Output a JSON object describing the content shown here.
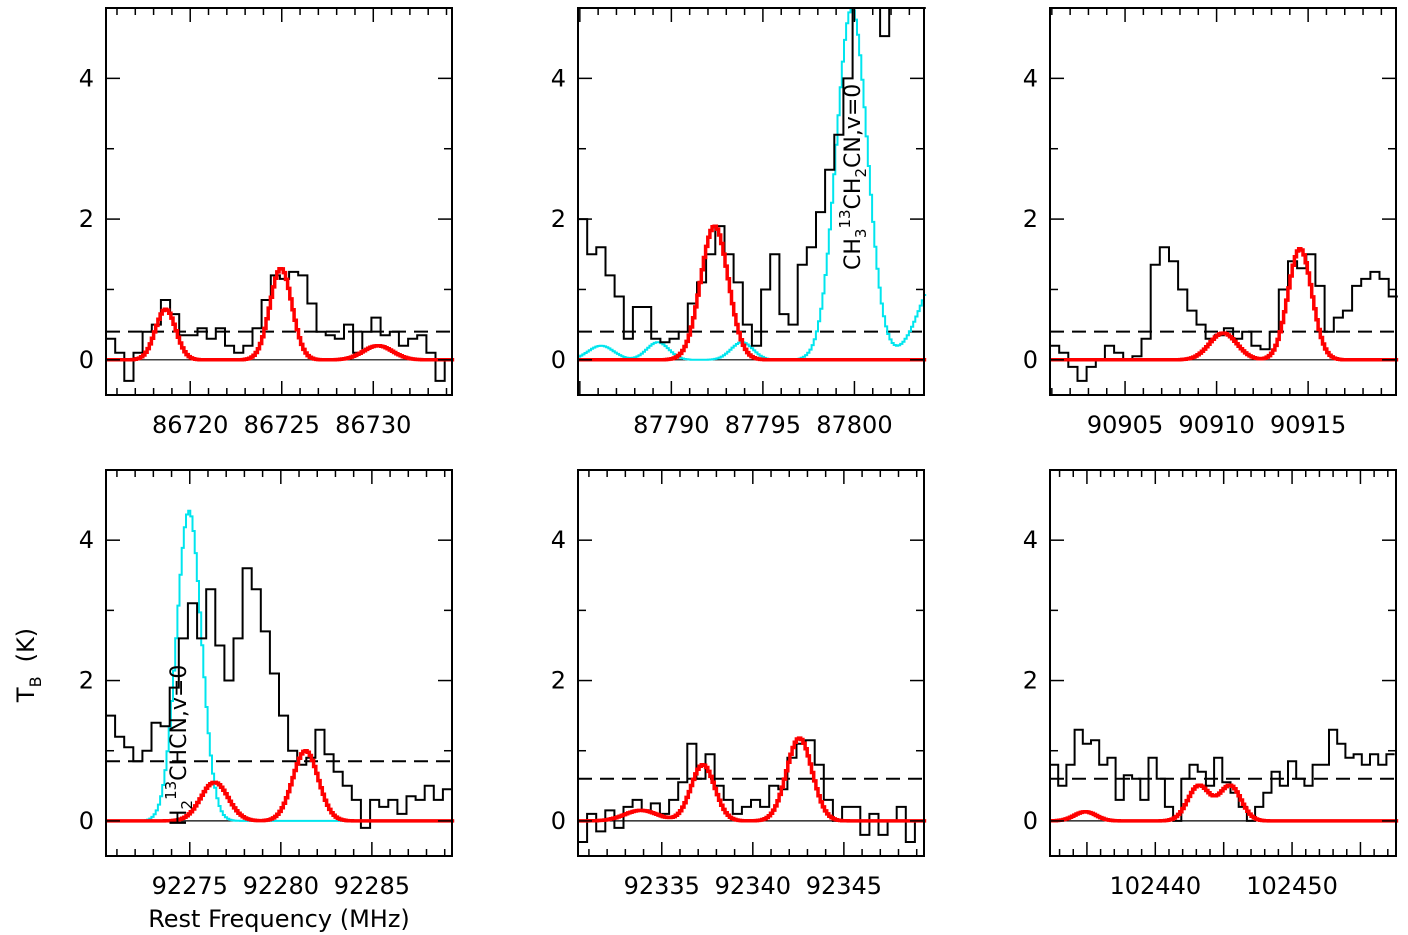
{
  "figure": {
    "ylabel_main": "T",
    "ylabel_sub": "B",
    "ylabel_unit": "(K)",
    "xlabel": "Rest Frequency (MHz)"
  },
  "chart_data": [
    {
      "type": "line",
      "xlim": [
        86715.4,
        86734.3
      ],
      "ylim": [
        -0.5,
        5
      ],
      "xticks": [
        86720,
        86725,
        86730
      ],
      "yticks": [
        0,
        2,
        4
      ],
      "threshold": 0.4,
      "observed": [
        [
          86715.4,
          0.3
        ],
        [
          86715.9,
          0.1
        ],
        [
          86716.4,
          -0.3
        ],
        [
          86716.9,
          0.1
        ],
        [
          86717.4,
          0.4
        ],
        [
          86717.9,
          0.5
        ],
        [
          86718.4,
          0.85
        ],
        [
          86718.9,
          0.65
        ],
        [
          86719.4,
          0.35
        ],
        [
          86719.9,
          0.35
        ],
        [
          86720.4,
          0.45
        ],
        [
          86720.9,
          0.3
        ],
        [
          86721.4,
          0.45
        ],
        [
          86721.9,
          0.2
        ],
        [
          86722.4,
          0.1
        ],
        [
          86722.9,
          0.2
        ],
        [
          86723.4,
          0.45
        ],
        [
          86723.9,
          0.85
        ],
        [
          86724.4,
          1.2
        ],
        [
          86724.9,
          1.15
        ],
        [
          86725.4,
          1.25
        ],
        [
          86725.9,
          1.2
        ],
        [
          86726.4,
          0.8
        ],
        [
          86726.9,
          0.4
        ],
        [
          86727.4,
          0.35
        ],
        [
          86727.9,
          0.3
        ],
        [
          86728.4,
          0.5
        ],
        [
          86728.9,
          0.1
        ],
        [
          86729.4,
          0.4
        ],
        [
          86729.9,
          0.6
        ],
        [
          86730.4,
          0.35
        ],
        [
          86730.9,
          0.4
        ],
        [
          86731.4,
          0.2
        ],
        [
          86731.9,
          0.3
        ],
        [
          86732.4,
          0.35
        ],
        [
          86732.9,
          0.1
        ],
        [
          86733.4,
          -0.3
        ],
        [
          86733.9,
          0.0
        ]
      ],
      "model_lines": [
        {
          "x": 86718.6,
          "h": 0.72,
          "w": 0.55
        },
        {
          "x": 86724.9,
          "h": 1.3,
          "w": 0.6
        },
        {
          "x": 86730.2,
          "h": 0.2,
          "w": 0.8
        }
      ],
      "cyan_lines": [],
      "label": null
    },
    {
      "type": "line",
      "xlim": [
        87784.9,
        87803.8
      ],
      "ylim": [
        -0.5,
        5
      ],
      "xticks": [
        87790,
        87795,
        87800
      ],
      "yticks": [
        0,
        2,
        4
      ],
      "threshold": 0.4,
      "observed": [
        [
          87784.9,
          2.0
        ],
        [
          87785.4,
          1.5
        ],
        [
          87785.9,
          1.6
        ],
        [
          87786.4,
          1.2
        ],
        [
          87786.9,
          0.9
        ],
        [
          87787.4,
          0.3
        ],
        [
          87787.9,
          0.75
        ],
        [
          87788.4,
          0.75
        ],
        [
          87788.9,
          0.3
        ],
        [
          87789.4,
          0.25
        ],
        [
          87789.9,
          0.3
        ],
        [
          87790.4,
          0.4
        ],
        [
          87790.9,
          0.8
        ],
        [
          87791.4,
          1.1
        ],
        [
          87791.9,
          1.5
        ],
        [
          87792.4,
          1.9
        ],
        [
          87792.9,
          1.5
        ],
        [
          87793.4,
          1.1
        ],
        [
          87793.9,
          0.5
        ],
        [
          87794.4,
          0.2
        ],
        [
          87794.9,
          1.0
        ],
        [
          87795.4,
          1.5
        ],
        [
          87795.9,
          0.65
        ],
        [
          87796.4,
          0.5
        ],
        [
          87796.9,
          1.35
        ],
        [
          87797.4,
          1.6
        ],
        [
          87797.9,
          2.1
        ],
        [
          87798.4,
          2.7
        ],
        [
          87798.9,
          3.2
        ],
        [
          87799.4,
          4.0
        ],
        [
          87799.9,
          5.0
        ],
        [
          87800.4,
          5.0
        ],
        [
          87800.9,
          5.0
        ],
        [
          87801.4,
          4.6
        ],
        [
          87801.9,
          5.0
        ],
        [
          87802.4,
          5.0
        ],
        [
          87802.9,
          5.0
        ],
        [
          87803.4,
          5.0
        ]
      ],
      "model_lines": [
        {
          "x": 87792.3,
          "h": 1.9,
          "w": 0.75
        }
      ],
      "cyan_lines": [
        {
          "x": 87786.1,
          "h": 0.2,
          "w": 0.7
        },
        {
          "x": 87789.2,
          "h": 0.25,
          "w": 0.6
        },
        {
          "x": 87793.8,
          "h": 0.25,
          "w": 0.6
        },
        {
          "x": 87799.8,
          "h": 5.0,
          "w": 0.85
        },
        {
          "x": 87804.6,
          "h": 1.2,
          "w": 1.1
        }
      ],
      "label": {
        "main": "CH",
        "sub1": "3",
        "sup": "13",
        "rest1": "CH",
        "sub2": "2",
        "rest2": "CN,v=0"
      }
    },
    {
      "type": "line",
      "xlim": [
        90900.9,
        90919.8
      ],
      "ylim": [
        -0.5,
        5
      ],
      "xticks": [
        90905,
        90910,
        90915
      ],
      "yticks": [
        0,
        2,
        4
      ],
      "threshold": 0.4,
      "observed": [
        [
          90900.9,
          0.2
        ],
        [
          90901.4,
          0.1
        ],
        [
          90901.9,
          -0.1
        ],
        [
          90902.4,
          -0.3
        ],
        [
          90902.9,
          -0.1
        ],
        [
          90903.4,
          0.0
        ],
        [
          90903.9,
          0.2
        ],
        [
          90904.4,
          0.1
        ],
        [
          90904.9,
          0.0
        ],
        [
          90905.4,
          0.05
        ],
        [
          90905.9,
          0.3
        ],
        [
          90906.4,
          1.35
        ],
        [
          90906.9,
          1.6
        ],
        [
          90907.4,
          1.4
        ],
        [
          90907.9,
          1.0
        ],
        [
          90908.4,
          0.7
        ],
        [
          90908.9,
          0.5
        ],
        [
          90909.4,
          0.3
        ],
        [
          90909.9,
          0.35
        ],
        [
          90910.4,
          0.45
        ],
        [
          90910.9,
          0.3
        ],
        [
          90911.4,
          0.4
        ],
        [
          90911.9,
          0.2
        ],
        [
          90912.4,
          0.15
        ],
        [
          90912.9,
          0.4
        ],
        [
          90913.4,
          1.0
        ],
        [
          90913.9,
          1.4
        ],
        [
          90914.4,
          1.3
        ],
        [
          90914.9,
          1.5
        ],
        [
          90915.4,
          1.05
        ],
        [
          90915.9,
          0.4
        ],
        [
          90916.4,
          0.6
        ],
        [
          90916.9,
          0.7
        ],
        [
          90917.4,
          1.05
        ],
        [
          90917.9,
          1.15
        ],
        [
          90918.4,
          1.25
        ],
        [
          90918.9,
          1.15
        ],
        [
          90919.4,
          0.9
        ]
      ],
      "model_lines": [
        {
          "x": 90910.3,
          "h": 0.38,
          "w": 0.75
        },
        {
          "x": 90914.5,
          "h": 1.58,
          "w": 0.65
        }
      ],
      "cyan_lines": [],
      "label": null
    },
    {
      "type": "line",
      "xlim": [
        92270.4,
        92289.4
      ],
      "ylim": [
        -0.5,
        5
      ],
      "xticks": [
        92275,
        92280,
        92285
      ],
      "yticks": [
        0,
        2,
        4
      ],
      "threshold": 0.85,
      "observed": [
        [
          92270.4,
          1.5
        ],
        [
          92270.9,
          1.2
        ],
        [
          92271.4,
          1.05
        ],
        [
          92271.9,
          0.85
        ],
        [
          92272.4,
          1.0
        ],
        [
          92272.9,
          1.4
        ],
        [
          92273.4,
          1.35
        ],
        [
          92273.9,
          1.9
        ],
        [
          92274.4,
          2.6
        ],
        [
          92274.9,
          3.1
        ],
        [
          92275.4,
          2.6
        ],
        [
          92275.9,
          3.3
        ],
        [
          92276.4,
          2.5
        ],
        [
          92276.9,
          2.0
        ],
        [
          92277.4,
          2.6
        ],
        [
          92277.9,
          3.6
        ],
        [
          92278.4,
          3.3
        ],
        [
          92278.9,
          2.7
        ],
        [
          92279.4,
          2.1
        ],
        [
          92279.9,
          1.5
        ],
        [
          92280.4,
          1.0
        ],
        [
          92280.9,
          0.8
        ],
        [
          92281.4,
          0.9
        ],
        [
          92281.9,
          1.3
        ],
        [
          92282.4,
          0.95
        ],
        [
          92282.9,
          0.7
        ],
        [
          92283.4,
          0.5
        ],
        [
          92283.9,
          0.3
        ],
        [
          92284.4,
          -0.1
        ],
        [
          92284.9,
          0.3
        ],
        [
          92285.4,
          0.2
        ],
        [
          92285.9,
          0.3
        ],
        [
          92286.4,
          0.1
        ],
        [
          92286.9,
          0.35
        ],
        [
          92287.4,
          0.3
        ],
        [
          92287.9,
          0.5
        ],
        [
          92288.4,
          0.3
        ],
        [
          92288.9,
          0.45
        ]
      ],
      "model_lines": [
        {
          "x": 92276.3,
          "h": 0.55,
          "w": 0.75
        },
        {
          "x": 92281.3,
          "h": 1.0,
          "w": 0.7
        }
      ],
      "cyan_lines": [
        {
          "x": 92274.9,
          "h": 4.42,
          "w": 0.68
        }
      ],
      "label": {
        "main": "H",
        "sub1": "2",
        "sup": "13",
        "rest1": "CHCN,v=0",
        "sub2": "",
        "rest2": ""
      }
    },
    {
      "type": "line",
      "xlim": [
        92330.4,
        92349.4
      ],
      "ylim": [
        -0.5,
        5
      ],
      "xticks": [
        92335,
        92340,
        92345
      ],
      "yticks": [
        0,
        2,
        4
      ],
      "threshold": 0.6,
      "observed": [
        [
          92330.4,
          -0.3
        ],
        [
          92330.9,
          0.1
        ],
        [
          92331.4,
          -0.15
        ],
        [
          92331.9,
          0.15
        ],
        [
          92332.4,
          -0.1
        ],
        [
          92332.9,
          0.2
        ],
        [
          92333.4,
          0.3
        ],
        [
          92333.9,
          0.15
        ],
        [
          92334.4,
          0.25
        ],
        [
          92334.9,
          0.1
        ],
        [
          92335.4,
          0.3
        ],
        [
          92335.9,
          0.55
        ],
        [
          92336.4,
          1.1
        ],
        [
          92336.9,
          0.6
        ],
        [
          92337.4,
          0.95
        ],
        [
          92337.9,
          0.5
        ],
        [
          92338.4,
          0.3
        ],
        [
          92338.9,
          0.1
        ],
        [
          92339.4,
          0.2
        ],
        [
          92339.9,
          0.3
        ],
        [
          92340.4,
          0.2
        ],
        [
          92340.9,
          0.5
        ],
        [
          92341.4,
          0.45
        ],
        [
          92341.9,
          0.9
        ],
        [
          92342.4,
          1.1
        ],
        [
          92342.9,
          1.15
        ],
        [
          92343.4,
          0.8
        ],
        [
          92343.9,
          0.3
        ],
        [
          92344.4,
          0.0
        ],
        [
          92344.9,
          0.2
        ],
        [
          92345.4,
          0.2
        ],
        [
          92345.9,
          -0.2
        ],
        [
          92346.4,
          0.1
        ],
        [
          92346.9,
          -0.2
        ],
        [
          92347.4,
          0.0
        ],
        [
          92347.9,
          0.2
        ],
        [
          92348.4,
          -0.3
        ],
        [
          92348.9,
          0.0
        ]
      ],
      "model_lines": [
        {
          "x": 92333.8,
          "h": 0.15,
          "w": 0.9
        },
        {
          "x": 92337.2,
          "h": 0.8,
          "w": 0.65
        },
        {
          "x": 92342.5,
          "h": 1.18,
          "w": 0.7
        }
      ],
      "cyan_lines": [],
      "label": null
    },
    {
      "type": "line",
      "xlim": [
        102432.3,
        102457.6
      ],
      "ylim": [
        -0.5,
        5
      ],
      "xticks": [
        102440,
        102450
      ],
      "yticks": [
        0,
        2,
        4
      ],
      "threshold": 0.6,
      "observed": [
        [
          102432.3,
          0.8
        ],
        [
          102432.9,
          0.5
        ],
        [
          102433.5,
          0.8
        ],
        [
          102434.1,
          1.3
        ],
        [
          102434.7,
          1.1
        ],
        [
          102435.3,
          1.15
        ],
        [
          102435.9,
          0.8
        ],
        [
          102436.5,
          0.9
        ],
        [
          102437.1,
          0.3
        ],
        [
          102437.7,
          0.65
        ],
        [
          102438.3,
          0.6
        ],
        [
          102438.9,
          0.3
        ],
        [
          102439.5,
          0.9
        ],
        [
          102440.1,
          0.6
        ],
        [
          102440.7,
          0.2
        ],
        [
          102441.3,
          0.0
        ],
        [
          102441.9,
          0.6
        ],
        [
          102442.5,
          0.8
        ],
        [
          102443.1,
          0.7
        ],
        [
          102443.7,
          0.5
        ],
        [
          102444.3,
          0.9
        ],
        [
          102444.9,
          0.55
        ],
        [
          102445.5,
          0.4
        ],
        [
          102446.1,
          0.2
        ],
        [
          102446.7,
          0.0
        ],
        [
          102447.3,
          0.2
        ],
        [
          102447.9,
          0.4
        ],
        [
          102448.5,
          0.7
        ],
        [
          102449.1,
          0.5
        ],
        [
          102449.7,
          0.85
        ],
        [
          102450.3,
          0.6
        ],
        [
          102450.9,
          0.5
        ],
        [
          102451.5,
          0.8
        ],
        [
          102452.1,
          0.8
        ],
        [
          102452.7,
          1.3
        ],
        [
          102453.3,
          1.1
        ],
        [
          102453.9,
          0.9
        ],
        [
          102454.5,
          0.95
        ],
        [
          102455.1,
          0.8
        ],
        [
          102455.7,
          0.95
        ],
        [
          102456.3,
          0.8
        ],
        [
          102456.9,
          0.95
        ]
      ],
      "model_lines": [
        {
          "x": 102434.8,
          "h": 0.13,
          "w": 0.8
        },
        {
          "x": 102443.1,
          "h": 0.5,
          "w": 0.8
        },
        {
          "x": 102445.4,
          "h": 0.5,
          "w": 0.8
        }
      ],
      "cyan_lines": [],
      "label": null
    }
  ]
}
